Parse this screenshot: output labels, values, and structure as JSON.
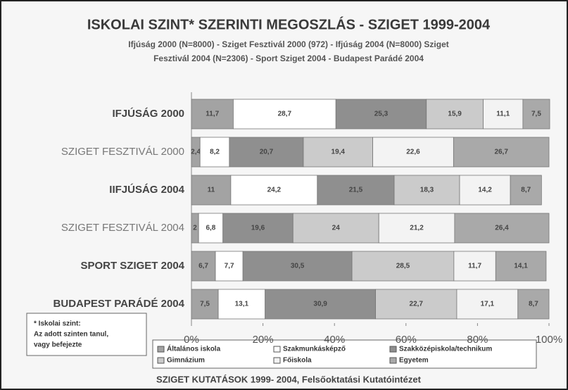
{
  "chart_data": {
    "type": "stacked-barh",
    "title": "ISKOLAI SZINT* SZERINTI MEGOSZLÁS - SZIGET 1999-2004",
    "subtitle": [
      "Ifjúság 2000 (N=8000) - Sziget Fesztivál 2000 (972) - Ifjúság 2004 (N=8000) Sziget",
      "Fesztivál 2004 (N=2306) - Sport Sziget 2004 - Budapest Parádé 2004"
    ],
    "categories": [
      "IFJÚSÁG 2000",
      "SZIGET FESZTIVÁL 2000",
      "IIFJÚSÁG 2004",
      "SZIGET FESZTIVÁL 2004",
      "SPORT SZIGET 2004",
      "BUDAPEST PARÁDÉ 2004"
    ],
    "series": [
      {
        "name": "Általános iskola",
        "color": "#a3a3a3",
        "values": [
          11.7,
          2.4,
          11,
          2,
          6.7,
          7.5
        ],
        "value_labels": [
          "11,7",
          "2,4",
          "11",
          "2",
          "6,7",
          "7,5"
        ]
      },
      {
        "name": "Szakmunkásképző",
        "color": "#ffffff",
        "values": [
          28.7,
          8.2,
          24.2,
          6.8,
          7.7,
          13.1
        ],
        "value_labels": [
          "28,7",
          "8,2",
          "24,2",
          "6,8",
          "7,7",
          "13,1"
        ]
      },
      {
        "name": "Szakközépiskola/technikum",
        "color": "#8f8f8f",
        "values": [
          25.3,
          20.7,
          21.5,
          19.6,
          30.5,
          30.9
        ],
        "value_labels": [
          "25,3",
          "20,7",
          "21,5",
          "19,6",
          "30,5",
          "30,9"
        ]
      },
      {
        "name": "Gimnázium",
        "color": "#cbcbcb",
        "values": [
          15.9,
          19.4,
          18.3,
          24,
          28.5,
          22.7
        ],
        "value_labels": [
          "15,9",
          "19,4",
          "18,3",
          "24",
          "28,5",
          "22,7"
        ]
      },
      {
        "name": "Főiskola",
        "color": "#f3f3f3",
        "values": [
          11.1,
          22.6,
          14.2,
          21.2,
          11.7,
          17.1
        ],
        "value_labels": [
          "11,1",
          "22,6",
          "14,2",
          "21,2",
          "11,7",
          "17,1"
        ]
      },
      {
        "name": "Egyetem",
        "color": "#a9a9a9",
        "values": [
          7.5,
          26.7,
          8.7,
          26.4,
          14.1,
          8.7
        ],
        "value_labels": [
          "7,5",
          "26,7",
          "8,7",
          "26,4",
          "14,1",
          "8,7"
        ]
      }
    ],
    "xlim": [
      0,
      100
    ],
    "xticks": [
      {
        "value": 0,
        "label": "0%"
      },
      {
        "value": 20,
        "label": "20%"
      },
      {
        "value": 40,
        "label": "40%"
      },
      {
        "value": 60,
        "label": "60%"
      },
      {
        "value": 80,
        "label": "80%"
      },
      {
        "value": 100,
        "label": "100%"
      }
    ],
    "note": [
      "* Iskolai szint:",
      "Az adott szinten tanul,",
      "vagy befejezte"
    ],
    "source": "SZIGET KUTATÁSOK 1999- 2004, Felsőoktatási Kutatóintézet"
  }
}
